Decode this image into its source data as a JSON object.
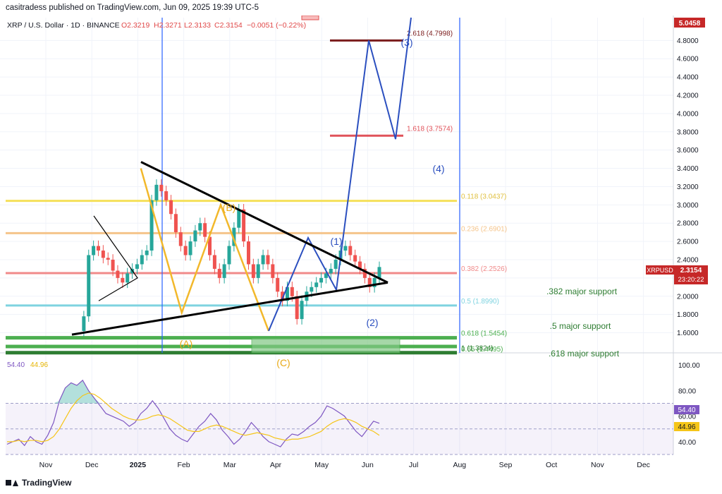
{
  "publisher": "casitradess published on TradingView.com, Jun 09, 2025 19:39 UTC-5",
  "brand": "TradingView",
  "chart_data": {
    "type": "candlestick",
    "symbol_line": {
      "symbol": "XRP / U.S. Dollar · 1D · BINANCE",
      "open": "O2.3219",
      "high": "H2.3271",
      "low": "L2.3133",
      "close": "C2.3154",
      "change": "−0.0051 (−0.22%)"
    },
    "price_axis": {
      "ticks": [
        "4.8000",
        "4.6000",
        "4.4000",
        "4.2000",
        "4.0000",
        "3.8000",
        "3.6000",
        "3.4000",
        "3.2000",
        "3.0000",
        "2.8000",
        "2.6000",
        "2.4000",
        "2.2000",
        "2.0000",
        "1.8000",
        "1.6000"
      ],
      "tick_values": [
        4.8,
        4.6,
        4.4,
        4.2,
        4.0,
        3.8,
        3.6,
        3.4,
        3.2,
        3.0,
        2.8,
        2.6,
        2.4,
        2.2,
        2.0,
        1.8,
        1.6
      ],
      "range": [
        1.38,
        5.05
      ],
      "top_tag": "5.0458",
      "price_tag": "XRPUSD",
      "price_value": "2.3154",
      "countdown": "23:20:22"
    },
    "time_axis": [
      "Nov",
      "Dec",
      "2025",
      "Feb",
      "Mar",
      "Apr",
      "May",
      "Jun",
      "Jul",
      "Aug",
      "Sep",
      "Oct",
      "Nov",
      "Dec"
    ],
    "fib_levels": [
      {
        "label": "0.118 (3.0437)",
        "value": 3.0437,
        "color": "#f5e05a"
      },
      {
        "label": "0.236 (2.6901)",
        "value": 2.6901,
        "color": "#f5c48a"
      },
      {
        "label": "0.382 (2.2526)",
        "value": 2.2526,
        "color": "#f08a8a"
      },
      {
        "label": "0.5 (1.8990)",
        "value": 1.899,
        "color": "#7fd3e0"
      },
      {
        "label": "0.618 (1.5454)",
        "value": 1.5454,
        "color": "#4caf50"
      },
      {
        "label": "0.65 (1.4495)",
        "value": 1.4495,
        "color": "#4caf50"
      },
      {
        "label": "1 (1.3824)",
        "value": 1.3824,
        "color": "#2e7d32"
      }
    ],
    "extension_levels": [
      {
        "label": "2.618 (4.7998)",
        "value": 4.7998,
        "color": "#7b1c1c"
      },
      {
        "label": "1.618 (3.7574)",
        "value": 3.7574,
        "color": "#e0525a"
      }
    ],
    "support_notes": [
      ".382 major support",
      ".5 major support",
      ".618 major support"
    ],
    "wave_labels": {
      "corrective": [
        "(A)",
        "(B)",
        "(C)"
      ],
      "impulse": [
        "(1)",
        "(2)",
        "(3)",
        "(4)"
      ]
    },
    "wave_points": {
      "corrective": [
        [
          3.37,
          3.4
        ],
        [
          4.82,
          1.82
        ],
        [
          6.2,
          3.0
        ],
        [
          7.9,
          1.62
        ]
      ],
      "impulse": [
        [
          7.9,
          1.62
        ],
        [
          9.3,
          2.64
        ],
        [
          10.3,
          2.07
        ],
        [
          11.45,
          4.8
        ],
        [
          12.4,
          3.72
        ],
        [
          12.95,
          5.05
        ]
      ]
    },
    "triangle": {
      "upper": [
        [
          2.2,
          3.47
        ],
        [
          11.0,
          2.15
        ]
      ],
      "lower": [
        [
          1.25,
          1.58
        ],
        [
          11.0,
          2.15
        ]
      ]
    },
    "candles_close": [
      1.62,
      1.78,
      2.45,
      2.55,
      2.5,
      2.42,
      2.4,
      2.28,
      2.2,
      2.15,
      2.25,
      2.3,
      2.35,
      2.45,
      2.5,
      3.05,
      3.22,
      3.15,
      3.05,
      2.9,
      2.7,
      2.55,
      2.45,
      2.6,
      2.72,
      2.8,
      2.65,
      2.45,
      2.3,
      2.2,
      2.35,
      2.55,
      2.75,
      2.95,
      2.6,
      2.35,
      2.2,
      2.35,
      2.45,
      2.35,
      2.2,
      2.05,
      1.95,
      2.1,
      2.0,
      1.75,
      1.95,
      2.05,
      2.1,
      2.15,
      2.2,
      2.25,
      2.3,
      2.4,
      2.5,
      2.55,
      2.45,
      2.38,
      2.3,
      2.2,
      2.1,
      2.2,
      2.32
    ],
    "rsi": {
      "value_label": "54.40",
      "ma_label": "44.96",
      "ticks": [
        "100.00",
        "80.00",
        "60.00",
        "40.00"
      ],
      "tick_values": [
        100,
        80,
        60,
        40
      ],
      "band": [
        30,
        70
      ],
      "values": [
        38,
        40,
        42,
        37,
        44,
        40,
        38,
        45,
        55,
        72,
        82,
        86,
        84,
        88,
        80,
        74,
        68,
        62,
        60,
        58,
        56,
        52,
        55,
        62,
        66,
        72,
        66,
        58,
        50,
        45,
        42,
        40,
        46,
        52,
        56,
        62,
        57,
        49,
        44,
        38,
        42,
        48,
        55,
        50,
        44,
        40,
        38,
        36,
        42,
        46,
        45,
        48,
        52,
        55,
        60,
        68,
        66,
        63,
        60,
        54,
        48,
        44,
        50,
        56,
        54.4
      ],
      "ma": [
        40,
        40,
        41,
        40,
        41,
        41,
        40,
        41,
        44,
        50,
        58,
        66,
        72,
        76,
        78,
        77,
        74,
        70,
        66,
        63,
        60,
        58,
        57,
        57,
        58,
        60,
        61,
        60,
        58,
        55,
        52,
        49,
        48,
        48,
        50,
        52,
        53,
        52,
        50,
        48,
        46,
        45,
        46,
        47,
        46,
        45,
        43,
        42,
        41,
        42,
        42,
        43,
        44,
        46,
        48,
        52,
        55,
        57,
        58,
        57,
        55,
        52,
        50,
        48,
        44.96
      ]
    }
  }
}
